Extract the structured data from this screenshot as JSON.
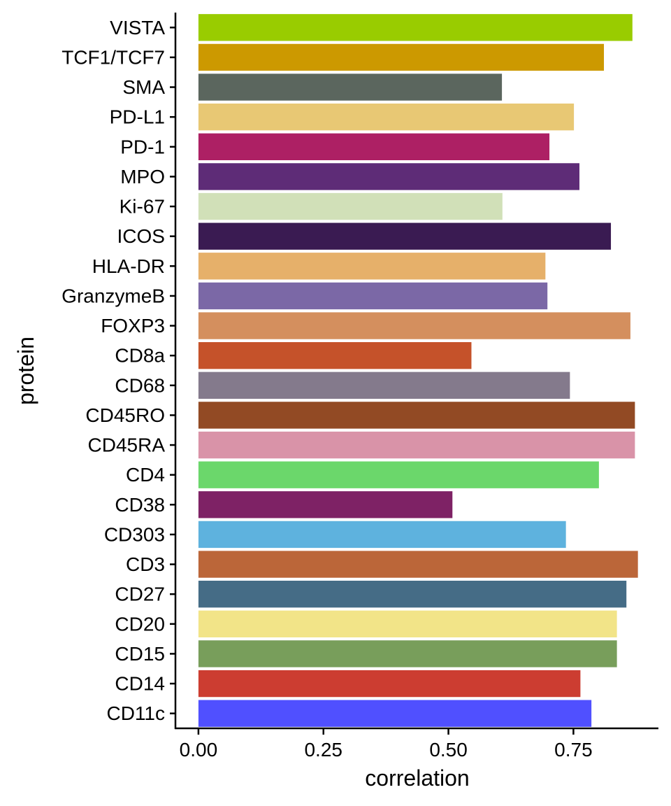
{
  "chart_data": {
    "type": "bar",
    "orientation": "horizontal",
    "xlabel": "correlation",
    "ylabel": "protein",
    "xlim": [
      -0.046,
      0.92
    ],
    "x_ticks": [
      0.0,
      0.25,
      0.5,
      0.75
    ],
    "x_tick_labels": [
      "0.00",
      "0.25",
      "0.50",
      "0.75"
    ],
    "grid": false,
    "legend": "none",
    "categories": [
      "VISTA",
      "TCF1/TCF7",
      "SMA",
      "PD-L1",
      "PD-1",
      "MPO",
      "Ki-67",
      "ICOS",
      "HLA-DR",
      "GranzymeB",
      "FOXP3",
      "CD8a",
      "CD68",
      "CD45RO",
      "CD45RA",
      "CD4",
      "CD38",
      "CD303",
      "CD3",
      "CD27",
      "CD20",
      "CD15",
      "CD14",
      "CD11c"
    ],
    "values": [
      0.868,
      0.811,
      0.607,
      0.751,
      0.702,
      0.762,
      0.608,
      0.825,
      0.694,
      0.698,
      0.864,
      0.546,
      0.743,
      0.873,
      0.873,
      0.801,
      0.508,
      0.735,
      0.879,
      0.856,
      0.837,
      0.837,
      0.764,
      0.786
    ],
    "colors": [
      "#99CC00",
      "#CC9900",
      "#5B665E",
      "#E8C874",
      "#AD2064",
      "#5E2C77",
      "#D1E0B8",
      "#3A1B52",
      "#E6B06A",
      "#7B68A6",
      "#D48F5E",
      "#C5522A",
      "#847A8C",
      "#924A24",
      "#D993A8",
      "#6BD76B",
      "#7E2265",
      "#5EB2DE",
      "#BB6639",
      "#456C86",
      "#F2E488",
      "#789E5B",
      "#CC3D31",
      "#5050FF"
    ]
  }
}
